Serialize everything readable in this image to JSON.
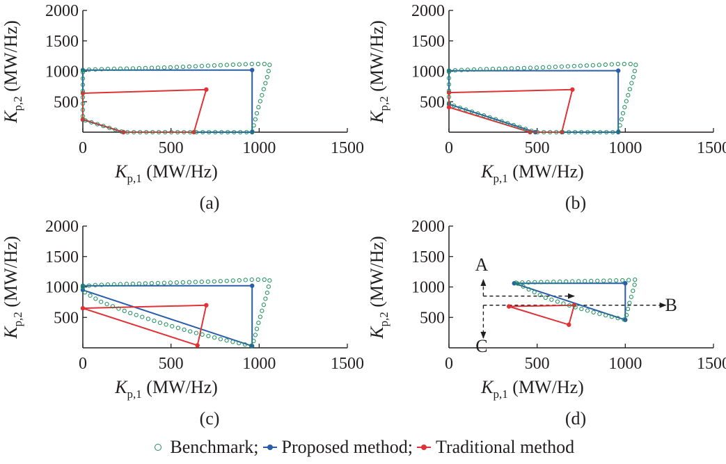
{
  "colors": {
    "benchmark": "#1a8f5a",
    "proposed": "#2a5da8",
    "traditional": "#e03236",
    "axis": "#231f20"
  },
  "legend": {
    "benchmark": "Benchmark;",
    "proposed": "Proposed method;",
    "traditional": "Traditional method"
  },
  "chart_data": [
    {
      "type": "line",
      "panel_label": "(a)",
      "xlabel_main": "K",
      "xlabel_sub": "p,1",
      "xlabel_unit": " (MW/Hz)",
      "ylabel_main": "K",
      "ylabel_sub": "p,2",
      "ylabel_unit": " (MW/Hz)",
      "xlim": [
        0,
        1500
      ],
      "ylim": [
        0,
        2000
      ],
      "xticks": [
        0,
        500,
        1000,
        1500
      ],
      "yticks": [
        500,
        1000,
        1500,
        2000
      ],
      "series": [
        {
          "role": "proposed",
          "points": [
            [
              0,
              1020
            ],
            [
              960,
              1020
            ],
            [
              960,
              0
            ],
            [
              230,
              0
            ],
            [
              0,
              205
            ],
            [
              0,
              1020
            ]
          ]
        },
        {
          "role": "traditional",
          "points": [
            [
              0,
              640
            ],
            [
              700,
              700
            ],
            [
              630,
              0
            ],
            [
              230,
              0
            ],
            [
              0,
              210
            ],
            [
              0,
              640
            ]
          ]
        },
        {
          "role": "benchmark",
          "points": [
            [
              0,
              1020
            ],
            [
              60,
              1030
            ],
            [
              150,
              1040
            ],
            [
              260,
              1045
            ],
            [
              380,
              1055
            ],
            [
              500,
              1065
            ],
            [
              620,
              1080
            ],
            [
              740,
              1095
            ],
            [
              860,
              1110
            ],
            [
              960,
              1120
            ],
            [
              1060,
              1120
            ],
            [
              1050,
              950
            ],
            [
              1030,
              750
            ],
            [
              1010,
              550
            ],
            [
              990,
              350
            ],
            [
              975,
              170
            ],
            [
              960,
              0
            ],
            [
              230,
              0
            ],
            [
              0,
              205
            ],
            [
              0,
              1020
            ]
          ]
        }
      ]
    },
    {
      "type": "line",
      "panel_label": "(b)",
      "xlabel_main": "K",
      "xlabel_sub": "p,1",
      "xlabel_unit": " (MW/Hz)",
      "ylabel_main": "K",
      "ylabel_sub": "p,2",
      "ylabel_unit": " (MW/Hz)",
      "xlim": [
        0,
        1500
      ],
      "ylim": [
        0,
        2000
      ],
      "xticks": [
        0,
        500,
        1000,
        1500
      ],
      "yticks": [
        500,
        1000,
        1500,
        2000
      ],
      "series": [
        {
          "role": "proposed",
          "points": [
            [
              0,
              1010
            ],
            [
              960,
              1010
            ],
            [
              960,
              0
            ],
            [
              490,
              0
            ],
            [
              0,
              460
            ],
            [
              0,
              1010
            ]
          ]
        },
        {
          "role": "traditional",
          "points": [
            [
              0,
              650
            ],
            [
              700,
              700
            ],
            [
              640,
              0
            ],
            [
              460,
              0
            ],
            [
              0,
              410
            ],
            [
              0,
              650
            ]
          ]
        },
        {
          "role": "benchmark",
          "points": [
            [
              0,
              1010
            ],
            [
              60,
              1020
            ],
            [
              150,
              1030
            ],
            [
              260,
              1040
            ],
            [
              380,
              1050
            ],
            [
              500,
              1060
            ],
            [
              620,
              1075
            ],
            [
              740,
              1090
            ],
            [
              860,
              1105
            ],
            [
              960,
              1120
            ],
            [
              1060,
              1120
            ],
            [
              1050,
              950
            ],
            [
              1030,
              750
            ],
            [
              1010,
              550
            ],
            [
              990,
              350
            ],
            [
              975,
              170
            ],
            [
              960,
              0
            ],
            [
              490,
              0
            ],
            [
              0,
              460
            ],
            [
              0,
              1010
            ]
          ]
        }
      ]
    },
    {
      "type": "line",
      "panel_label": "(c)",
      "xlabel_main": "K",
      "xlabel_sub": "p,1",
      "xlabel_unit": " (MW/Hz)",
      "ylabel_main": "K",
      "ylabel_sub": "p,2",
      "ylabel_unit": " (MW/Hz)",
      "xlim": [
        0,
        1500
      ],
      "ylim": [
        0,
        2000
      ],
      "xticks": [
        0,
        500,
        1000,
        1500
      ],
      "yticks": [
        500,
        1000,
        1500,
        2000
      ],
      "series": [
        {
          "role": "proposed",
          "points": [
            [
              0,
              1020
            ],
            [
              960,
              1020
            ],
            [
              960,
              30
            ],
            [
              0,
              950
            ],
            [
              0,
              1020
            ]
          ]
        },
        {
          "role": "traditional",
          "points": [
            [
              0,
              650
            ],
            [
              700,
              700
            ],
            [
              650,
              40
            ],
            [
              0,
              650
            ]
          ]
        },
        {
          "role": "benchmark",
          "points": [
            [
              0,
              1010
            ],
            [
              60,
              1030
            ],
            [
              150,
              1040
            ],
            [
              260,
              1050
            ],
            [
              380,
              1060
            ],
            [
              500,
              1070
            ],
            [
              620,
              1080
            ],
            [
              740,
              1090
            ],
            [
              860,
              1105
            ],
            [
              960,
              1120
            ],
            [
              1060,
              1120
            ],
            [
              1050,
              950
            ],
            [
              1030,
              750
            ],
            [
              1010,
              550
            ],
            [
              990,
              350
            ],
            [
              975,
              170
            ],
            [
              960,
              30
            ],
            [
              800,
              130
            ],
            [
              620,
              260
            ],
            [
              440,
              410
            ],
            [
              260,
              580
            ],
            [
              100,
              760
            ],
            [
              0,
              930
            ],
            [
              0,
              1010
            ]
          ]
        }
      ]
    },
    {
      "type": "line",
      "panel_label": "(d)",
      "xlabel_main": "K",
      "xlabel_sub": "p,1",
      "xlabel_unit": " (MW/Hz)",
      "ylabel_main": "K",
      "ylabel_sub": "p,2",
      "ylabel_unit": " (MW/Hz)",
      "xlim": [
        0,
        1500
      ],
      "ylim": [
        0,
        2000
      ],
      "xticks": [
        0,
        500,
        1000,
        1500
      ],
      "yticks": [
        500,
        1000,
        1500,
        2000
      ],
      "series": [
        {
          "role": "proposed",
          "points": [
            [
              370,
              1060
            ],
            [
              1000,
              1060
            ],
            [
              1000,
              460
            ],
            [
              370,
              1060
            ]
          ]
        },
        {
          "role": "traditional",
          "points": [
            [
              340,
              680
            ],
            [
              710,
              700
            ],
            [
              680,
              380
            ],
            [
              340,
              680
            ]
          ]
        },
        {
          "role": "benchmark",
          "points": [
            [
              380,
              1070
            ],
            [
              520,
              1080
            ],
            [
              680,
              1090
            ],
            [
              840,
              1100
            ],
            [
              1000,
              1110
            ],
            [
              1060,
              1120
            ],
            [
              1040,
              900
            ],
            [
              1020,
              700
            ],
            [
              1000,
              460
            ],
            [
              850,
              560
            ],
            [
              700,
              680
            ],
            [
              540,
              830
            ],
            [
              380,
              1070
            ]
          ]
        }
      ],
      "annotations": [
        {
          "text": "A",
          "x": 185,
          "y": 1360
        },
        {
          "text": "B",
          "x": 1260,
          "y": 700
        },
        {
          "text": "C",
          "x": 185,
          "y": 25
        }
      ],
      "arrows": [
        {
          "from": [
            195,
            850
          ],
          "to": [
            195,
            1120
          ]
        },
        {
          "from": [
            195,
            700
          ],
          "to": [
            195,
            160
          ]
        },
        {
          "from": [
            195,
            850
          ],
          "to": [
            710,
            850
          ]
        },
        {
          "from": [
            195,
            700
          ],
          "to": [
            1230,
            700
          ]
        }
      ]
    }
  ]
}
